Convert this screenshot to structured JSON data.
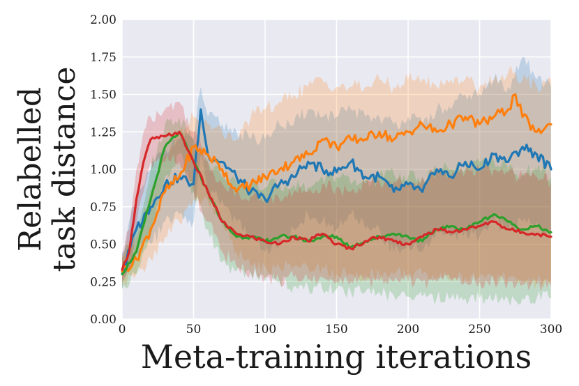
{
  "chart_data": {
    "type": "line",
    "title": "",
    "xlabel": "Meta-training iterations",
    "ylabel_lines": [
      "Relabelled",
      "task distance"
    ],
    "xlim": [
      0,
      300
    ],
    "ylim": [
      0.0,
      2.0
    ],
    "grid": true,
    "legend": "none",
    "x_ticks": [
      0,
      50,
      100,
      150,
      200,
      250,
      300
    ],
    "x_tick_labels": [
      "0",
      "50",
      "100",
      "150",
      "200",
      "250",
      "300"
    ],
    "y_ticks": [
      0.0,
      0.25,
      0.5,
      0.75,
      1.0,
      1.25,
      1.5,
      1.75,
      2.0
    ],
    "y_tick_labels": [
      "0.00",
      "0.25",
      "0.50",
      "0.75",
      "1.00",
      "1.25",
      "1.50",
      "1.75",
      "2.00"
    ],
    "colors": {
      "plot_bg": "#e9e9f1",
      "grid": "#ffffff"
    },
    "series": [
      {
        "name": "blue",
        "color": "#1f77b4",
        "x": [
          0,
          10,
          20,
          30,
          40,
          50,
          55,
          60,
          70,
          80,
          90,
          100,
          110,
          120,
          130,
          140,
          150,
          160,
          170,
          180,
          190,
          200,
          210,
          220,
          230,
          240,
          250,
          260,
          270,
          280,
          290,
          300
        ],
        "values": [
          0.3,
          0.6,
          0.75,
          0.9,
          0.95,
          0.9,
          1.4,
          1.1,
          1.05,
          0.95,
          0.85,
          0.8,
          0.9,
          0.95,
          1.05,
          1.0,
          0.98,
          1.05,
          0.95,
          0.95,
          0.85,
          0.9,
          0.85,
          1.0,
          0.95,
          1.05,
          1.0,
          1.1,
          1.05,
          1.15,
          1.1,
          1.0
        ],
        "upper": [
          0.45,
          0.8,
          1.0,
          1.15,
          1.2,
          1.2,
          1.55,
          1.35,
          1.3,
          1.25,
          1.2,
          1.2,
          1.3,
          1.3,
          1.4,
          1.35,
          1.35,
          1.4,
          1.35,
          1.35,
          1.3,
          1.35,
          1.3,
          1.4,
          1.4,
          1.5,
          1.5,
          1.6,
          1.55,
          1.75,
          1.6,
          1.55
        ],
        "lower": [
          0.2,
          0.45,
          0.5,
          0.65,
          0.7,
          0.65,
          1.1,
          0.85,
          0.8,
          0.65,
          0.55,
          0.45,
          0.5,
          0.6,
          0.7,
          0.65,
          0.6,
          0.7,
          0.6,
          0.6,
          0.45,
          0.5,
          0.45,
          0.6,
          0.55,
          0.6,
          0.55,
          0.65,
          0.6,
          0.65,
          0.65,
          0.55
        ]
      },
      {
        "name": "orange",
        "color": "#ff7f0e",
        "x": [
          0,
          10,
          20,
          30,
          40,
          50,
          60,
          70,
          80,
          90,
          100,
          110,
          120,
          130,
          140,
          150,
          160,
          170,
          180,
          190,
          200,
          210,
          220,
          230,
          240,
          250,
          260,
          270,
          275,
          280,
          290,
          300
        ],
        "values": [
          0.32,
          0.4,
          0.6,
          0.85,
          0.95,
          1.15,
          1.1,
          1.0,
          0.85,
          0.9,
          0.95,
          1.0,
          1.05,
          1.1,
          1.2,
          1.15,
          1.2,
          1.2,
          1.25,
          1.2,
          1.25,
          1.3,
          1.25,
          1.3,
          1.35,
          1.3,
          1.35,
          1.4,
          1.5,
          1.35,
          1.25,
          1.3
        ],
        "upper": [
          0.42,
          0.55,
          0.85,
          1.1,
          1.25,
          1.35,
          1.3,
          1.25,
          1.2,
          1.35,
          1.4,
          1.45,
          1.5,
          1.55,
          1.6,
          1.55,
          1.55,
          1.55,
          1.6,
          1.55,
          1.6,
          1.6,
          1.55,
          1.6,
          1.6,
          1.55,
          1.6,
          1.65,
          1.65,
          1.6,
          1.55,
          1.6
        ],
        "lower": [
          0.22,
          0.3,
          0.4,
          0.55,
          0.65,
          0.8,
          0.8,
          0.65,
          0.45,
          0.35,
          0.35,
          0.35,
          0.35,
          0.35,
          0.35,
          0.3,
          0.3,
          0.3,
          0.3,
          0.3,
          0.3,
          0.3,
          0.28,
          0.28,
          0.28,
          0.28,
          0.28,
          0.28,
          0.28,
          0.25,
          0.25,
          0.25
        ]
      },
      {
        "name": "green",
        "color": "#2ca02c",
        "x": [
          0,
          10,
          20,
          30,
          40,
          50,
          60,
          70,
          80,
          90,
          100,
          110,
          120,
          130,
          140,
          150,
          160,
          170,
          180,
          190,
          200,
          210,
          220,
          230,
          240,
          250,
          260,
          270,
          280,
          290,
          300
        ],
        "values": [
          0.3,
          0.45,
          0.8,
          1.15,
          1.25,
          1.05,
          0.85,
          0.65,
          0.55,
          0.55,
          0.52,
          0.55,
          0.55,
          0.52,
          0.55,
          0.55,
          0.48,
          0.52,
          0.55,
          0.57,
          0.55,
          0.52,
          0.6,
          0.62,
          0.6,
          0.65,
          0.7,
          0.65,
          0.6,
          0.62,
          0.58
        ],
        "upper": [
          0.4,
          0.6,
          1.0,
          1.3,
          1.35,
          1.2,
          1.05,
          0.95,
          0.9,
          0.9,
          0.88,
          0.9,
          0.9,
          0.88,
          0.95,
          0.95,
          0.9,
          0.92,
          0.95,
          0.97,
          0.95,
          0.95,
          1.0,
          1.0,
          1.0,
          1.05,
          1.05,
          1.0,
          0.98,
          1.0,
          0.95
        ],
        "lower": [
          0.2,
          0.3,
          0.55,
          0.95,
          1.1,
          0.85,
          0.6,
          0.38,
          0.32,
          0.3,
          0.25,
          0.25,
          0.22,
          0.22,
          0.2,
          0.2,
          0.18,
          0.18,
          0.18,
          0.16,
          0.15,
          0.15,
          0.14,
          0.14,
          0.14,
          0.14,
          0.13,
          0.13,
          0.14,
          0.14,
          0.14
        ]
      },
      {
        "name": "red",
        "color": "#d62728",
        "x": [
          0,
          5,
          10,
          15,
          20,
          30,
          40,
          50,
          60,
          70,
          80,
          90,
          100,
          110,
          120,
          130,
          140,
          150,
          160,
          170,
          180,
          190,
          200,
          210,
          220,
          230,
          240,
          250,
          260,
          270,
          280,
          290,
          300
        ],
        "values": [
          0.33,
          0.45,
          0.8,
          1.05,
          1.2,
          1.22,
          1.25,
          1.05,
          0.85,
          0.65,
          0.57,
          0.55,
          0.52,
          0.5,
          0.55,
          0.52,
          0.57,
          0.5,
          0.47,
          0.52,
          0.55,
          0.52,
          0.5,
          0.55,
          0.6,
          0.58,
          0.6,
          0.62,
          0.65,
          0.6,
          0.58,
          0.57,
          0.55
        ],
        "upper": [
          0.43,
          0.6,
          1.0,
          1.25,
          1.35,
          1.4,
          1.45,
          1.25,
          1.05,
          0.9,
          0.85,
          0.82,
          0.8,
          0.8,
          0.85,
          0.85,
          0.9,
          0.88,
          0.85,
          0.9,
          0.92,
          0.92,
          0.9,
          0.95,
          0.98,
          0.95,
          0.98,
          1.0,
          1.0,
          0.98,
          0.95,
          0.95,
          0.92
        ],
        "lower": [
          0.25,
          0.32,
          0.62,
          0.85,
          1.05,
          1.05,
          1.05,
          0.85,
          0.65,
          0.45,
          0.35,
          0.32,
          0.28,
          0.26,
          0.28,
          0.26,
          0.28,
          0.25,
          0.25,
          0.25,
          0.25,
          0.25,
          0.25,
          0.25,
          0.25,
          0.25,
          0.25,
          0.25,
          0.25,
          0.25,
          0.23,
          0.23,
          0.22
        ]
      }
    ]
  }
}
